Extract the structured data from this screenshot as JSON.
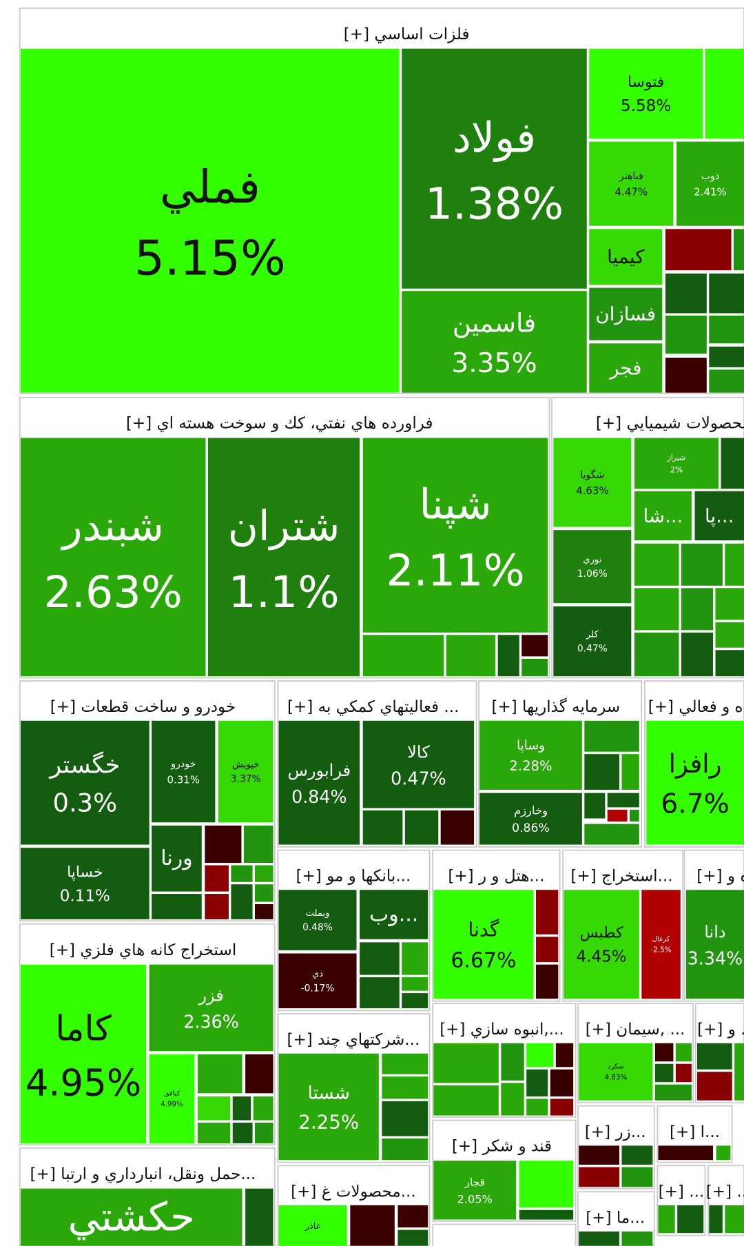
{
  "sectors": [
    {
      "title": "فلزات اساسي [+]",
      "tiles": [
        {
          "name": "فملي",
          "change": "5.15%"
        },
        {
          "name": "فولاد",
          "change": "1.38%"
        },
        {
          "name": "فاسمين",
          "change": "3.35%"
        },
        {
          "name": "فتوسا",
          "change": "5.58%"
        },
        {
          "name": "فباهنر",
          "change": "4.47%"
        },
        {
          "name": "ذوب",
          "change": "2.41%"
        },
        {
          "name": "كيميا"
        },
        {
          "name": "فسازان"
        },
        {
          "name": "فجر"
        }
      ]
    },
    {
      "title": "فراورده هاي نفتي، كك و سوخت هسته اي [+]",
      "tiles": [
        {
          "name": "شبندر",
          "change": "2.63%"
        },
        {
          "name": "شتران",
          "change": "1.1%"
        },
        {
          "name": "شپنا",
          "change": "2.11%"
        }
      ]
    },
    {
      "title": "محصولات شيميايي [+]",
      "tiles": [
        {
          "name": "شگويا",
          "change": "4.63%"
        },
        {
          "name": "شيراز",
          "change": "2%"
        },
        {
          "name": "شا..."
        },
        {
          "name": "پا..."
        },
        {
          "name": "نوري",
          "change": "1.06%"
        },
        {
          "name": "كلر",
          "change": "0.47%"
        }
      ]
    },
    {
      "title": "خودرو و ساخت قطعات [+]",
      "tiles": [
        {
          "name": "خگستر",
          "change": "0.3%"
        },
        {
          "name": "خساپا",
          "change": "0.11%"
        },
        {
          "name": "خودرو",
          "change": "0.31%"
        },
        {
          "name": "خپويش",
          "change": "3.37%"
        },
        {
          "name": "ورنا"
        }
      ]
    },
    {
      "title": "... فعاليتهاي كمكي به [+]",
      "tiles": [
        {
          "name": "فرابورس",
          "change": "0.84%"
        },
        {
          "name": "كالا",
          "change": "0.47%"
        }
      ]
    },
    {
      "title": "سرمايه گذاريها [+]",
      "tiles": [
        {
          "name": "وساپا",
          "change": "2.28%"
        },
        {
          "name": "وخارزم",
          "change": "0.86%"
        }
      ]
    },
    {
      "title": "ه و فعالي [+]",
      "tiles": [
        {
          "name": "رافزا",
          "change": "6.7%"
        }
      ]
    },
    {
      "title": "استخراج كانه هاي فلزي [+]",
      "tiles": [
        {
          "name": "كاما",
          "change": "4.95%"
        },
        {
          "name": "فزر",
          "change": "2.36%"
        },
        {
          "name": "كبافق",
          "change": "4.99%"
        }
      ]
    },
    {
      "title": "...حمل ونقل، انبارداري و ارتبا [+]",
      "tiles": [
        {
          "name": "حكشتي"
        }
      ]
    },
    {
      "title": "...بانكها و مو [+]",
      "tiles": [
        {
          "name": "وبملت",
          "change": "0.48%"
        },
        {
          "name": "دي",
          "change": "-0.17%"
        },
        {
          "name": "وب..."
        }
      ]
    },
    {
      "title": "...هتل و ر [+]",
      "tiles": [
        {
          "name": "گدنا",
          "change": "6.67%"
        }
      ]
    },
    {
      "title": "...استخراج [+]",
      "tiles": [
        {
          "name": "كطبس",
          "change": "4.45%"
        },
        {
          "name": "كزغال",
          "change": "-2.5%"
        }
      ]
    },
    {
      "title": "ه و [+]",
      "tiles": [
        {
          "name": "دانا",
          "change": "3.34%"
        }
      ]
    },
    {
      "title": "...شركتهاي چند [+]",
      "tiles": [
        {
          "name": "شستا",
          "change": "2.25%"
        }
      ]
    },
    {
      "title": "...,انبوه سازي [+]",
      "tiles": []
    },
    {
      "title": "... ,سيمان [+]",
      "tiles": [
        {
          "name": "سكرد",
          "change": "4.83%"
        }
      ]
    },
    {
      "title": "... و [+]",
      "tiles": []
    },
    {
      "title": "قند و شكر [+]",
      "tiles": [
        {
          "name": "قجار",
          "change": "2.05%"
        }
      ]
    },
    {
      "title": "...محصولات غ [+]",
      "tiles": [
        {
          "name": "غاذر"
        }
      ]
    },
    {
      "title": "...زر [+]",
      "tiles": []
    },
    {
      "title": "...ا [+]",
      "tiles": []
    },
    {
      "title": "...ما [+]",
      "tiles": []
    },
    {
      "title": "... [+]",
      "tiles": []
    },
    {
      "title": "... [+]",
      "tiles": []
    }
  ]
}
